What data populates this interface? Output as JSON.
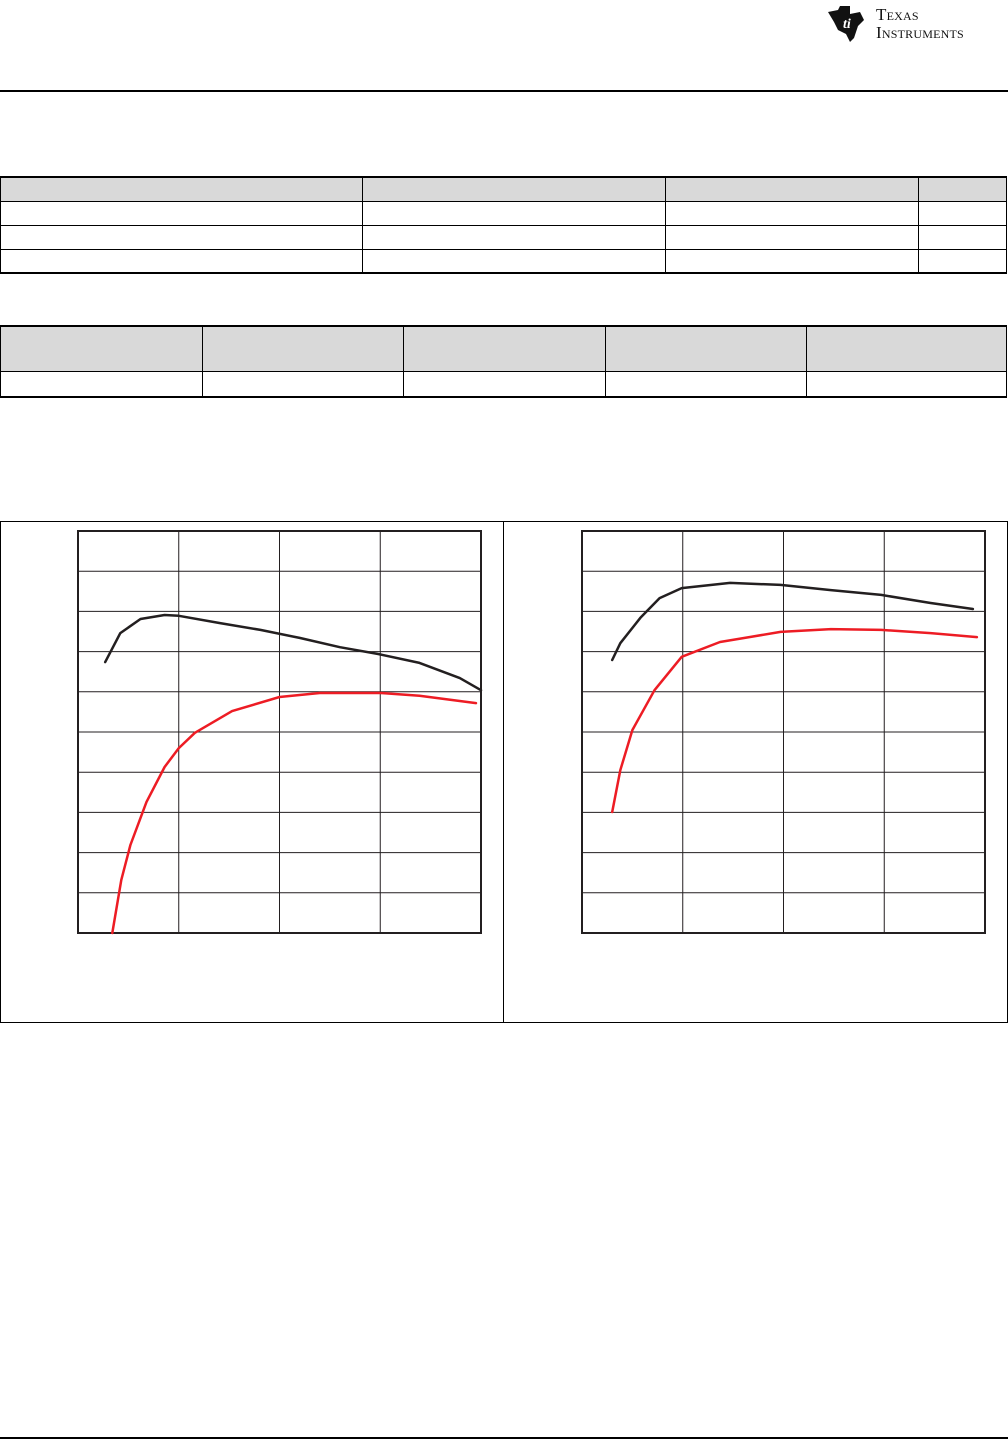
{
  "header": {
    "logo_text": "Texas Instruments"
  },
  "chart_data": [
    {
      "type": "line",
      "xlim": [
        0,
        4
      ],
      "ylim": [
        0,
        10
      ],
      "grid": true,
      "series": [
        {
          "color": "#231f20",
          "x": [
            0.27,
            0.42,
            0.62,
            0.86,
            1.0,
            1.41,
            1.81,
            2.2,
            2.6,
            2.98,
            3.39,
            3.79,
            4.0
          ],
          "y": [
            6.74,
            7.46,
            7.81,
            7.91,
            7.89,
            7.71,
            7.54,
            7.34,
            7.11,
            6.94,
            6.72,
            6.34,
            6.04
          ]
        },
        {
          "color": "#ed1c24",
          "x": [
            0.34,
            0.43,
            0.52,
            0.68,
            0.86,
            1.0,
            1.16,
            1.53,
            2.0,
            2.4,
            3.0,
            3.39,
            3.95
          ],
          "y": [
            0,
            1.32,
            2.19,
            3.26,
            4.13,
            4.6,
            4.98,
            5.52,
            5.87,
            5.97,
            5.97,
            5.9,
            5.72
          ]
        }
      ]
    },
    {
      "type": "line",
      "xlim": [
        0,
        4
      ],
      "ylim": [
        0,
        10
      ],
      "grid": true,
      "series": [
        {
          "color": "#231f20",
          "x": [
            0.3,
            0.38,
            0.58,
            0.77,
            0.99,
            1.47,
            1.97,
            2.47,
            2.97,
            3.46,
            3.88
          ],
          "y": [
            6.79,
            7.21,
            7.84,
            8.33,
            8.58,
            8.71,
            8.66,
            8.53,
            8.41,
            8.21,
            8.06
          ]
        },
        {
          "color": "#ed1c24",
          "x": [
            0.3,
            0.38,
            0.5,
            0.72,
            0.99,
            1.37,
            1.97,
            2.47,
            2.97,
            3.46,
            3.92
          ],
          "y": [
            3.01,
            4.05,
            5.05,
            6.04,
            6.87,
            7.24,
            7.49,
            7.56,
            7.54,
            7.46,
            7.36
          ]
        }
      ]
    }
  ]
}
